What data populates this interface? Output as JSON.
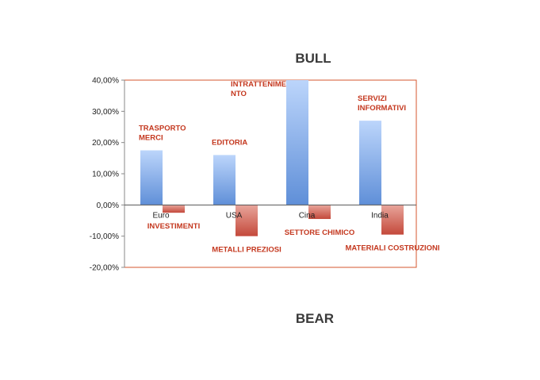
{
  "title_top": "BULL",
  "title_bottom": "BEAR",
  "colors": {
    "bull_top": "#bcd5fb",
    "bull_bottom": "#5f8fd8",
    "bear_top": "#e8a59b",
    "bear_bottom": "#c4493b",
    "frame": "#d4572f",
    "annotation": "#c4381f"
  },
  "chart_data": {
    "type": "bar",
    "categories": [
      "Euro",
      "USA",
      "Cina",
      "India"
    ],
    "series": [
      {
        "values": [
          17.5,
          16,
          40,
          27
        ]
      },
      {
        "values": [
          -2.5,
          -10,
          -4.5,
          -9.5
        ]
      }
    ],
    "ylim": [
      -20,
      40
    ],
    "yticks": [
      "-20,00%",
      "-10,00%",
      "0,00%",
      "10,00%",
      "20,00%",
      "30,00%",
      "40,00%"
    ],
    "ytick_values": [
      -20,
      -10,
      0,
      10,
      20,
      30,
      40
    ],
    "grid": false,
    "annotations": [
      {
        "lines": [
          "TRASPORTO",
          "MERCI"
        ],
        "category": "Euro",
        "series": 0
      },
      {
        "lines": [
          "INVESTIMENTI"
        ],
        "category": "Euro",
        "series": 1
      },
      {
        "lines": [
          "EDITORIA"
        ],
        "category": "USA",
        "series": 0
      },
      {
        "lines": [
          "METALLI PREZIOSI"
        ],
        "category": "USA",
        "series": 1
      },
      {
        "lines": [
          "INTRATTENIME",
          "NTO"
        ],
        "category": "Cina",
        "series": 0
      },
      {
        "lines": [
          "SETTORE CHIMICO"
        ],
        "category": "Cina",
        "series": 1
      },
      {
        "lines": [
          "SERVIZI",
          "INFORMATIVI"
        ],
        "category": "India",
        "series": 0
      },
      {
        "lines": [
          "MATERIALI COSTRUZIONI"
        ],
        "category": "India",
        "series": 1
      }
    ]
  }
}
